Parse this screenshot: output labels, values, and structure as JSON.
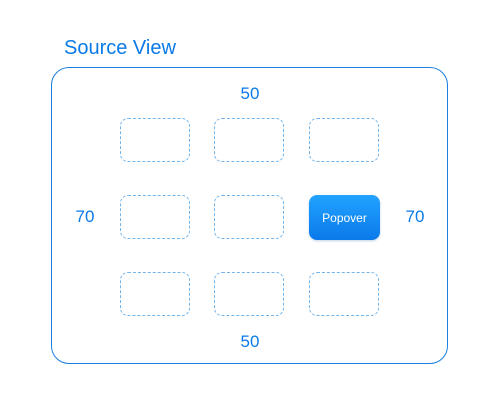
{
  "title": "Source View",
  "margins": {
    "top": "50",
    "bottom": "50",
    "left": "70",
    "right": "70"
  },
  "popover": {
    "label": "Popover"
  },
  "colors": {
    "accent": "#0a7ae6",
    "dashed_outline": "#72b4ea",
    "popover_fill_top": "#22a3ff",
    "popover_fill_bottom": "#0a79ea"
  }
}
